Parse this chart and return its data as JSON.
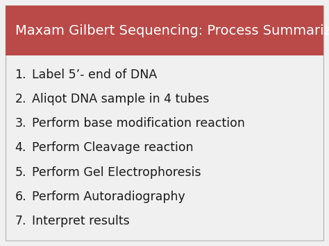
{
  "title": "Maxam Gilbert Sequencing: Process Summarized",
  "title_bg_color": "#b94a48",
  "title_text_color": "#ffffff",
  "body_bg_color": "#f0f0f0",
  "items": [
    "Label 5’- end of DNA",
    "Aliqot DNA sample in 4 tubes",
    "Perform base modification reaction",
    "Perform Cleavage reaction",
    "Perform Gel Electrophoresis",
    "Perform Autoradiography",
    "Interpret results"
  ],
  "item_text_color": "#1a1a1a",
  "item_fontsize": 12.5,
  "title_fontsize": 14.0,
  "border_color": "#bbbbbb"
}
